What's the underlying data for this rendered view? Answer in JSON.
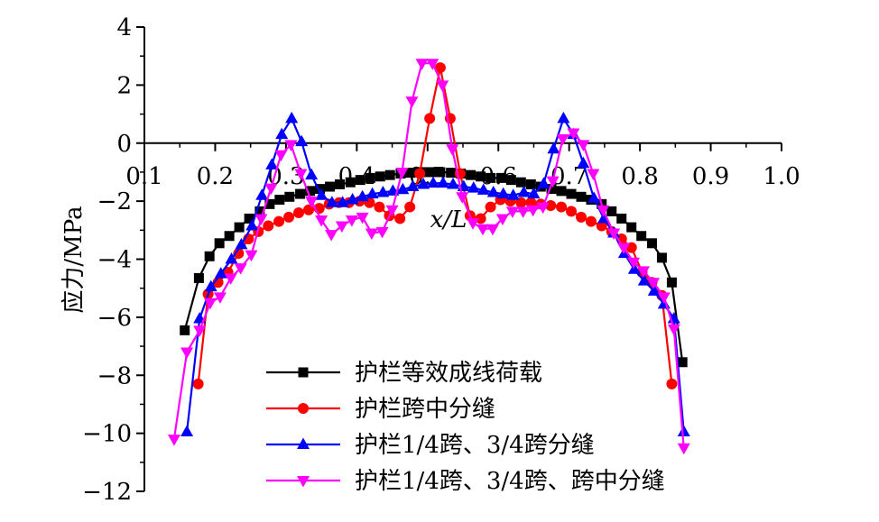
{
  "chart_data": {
    "type": "line",
    "xlabel": "x/L",
    "ylabel": "应力/MPa",
    "xlim": [
      0.1,
      1.0
    ],
    "ylim": [
      -12,
      4
    ],
    "xticks": [
      0.1,
      0.2,
      0.3,
      0.4,
      0.5,
      0.6,
      0.7,
      0.8,
      0.9,
      1.0
    ],
    "xtick_labels": [
      "0.1",
      "0.2",
      "0.3",
      "0.4",
      "0.5",
      "0.6",
      "0.7",
      "0.8",
      "0.9",
      "1.0"
    ],
    "yticks": [
      4,
      2,
      0,
      -2,
      -4,
      -6,
      -8,
      -10,
      -12
    ],
    "ytick_labels": [
      "4",
      "2",
      "0",
      "−2",
      "−4",
      "−6",
      "−8",
      "−10",
      "−12"
    ],
    "x_axis_at_y": 0,
    "legend_position": "bottom-center",
    "series": [
      {
        "name": "护栏等效成线荷载",
        "color": "#000000",
        "marker": "square",
        "x": [
          0.157,
          0.177,
          0.192,
          0.206,
          0.22,
          0.234,
          0.248,
          0.263,
          0.277,
          0.291,
          0.305,
          0.32,
          0.334,
          0.348,
          0.362,
          0.376,
          0.391,
          0.405,
          0.419,
          0.433,
          0.447,
          0.462,
          0.476,
          0.49,
          0.504,
          0.518,
          0.533,
          0.547,
          0.561,
          0.575,
          0.589,
          0.604,
          0.618,
          0.632,
          0.646,
          0.66,
          0.675,
          0.689,
          0.703,
          0.717,
          0.731,
          0.746,
          0.76,
          0.774,
          0.788,
          0.802,
          0.817,
          0.831,
          0.845,
          0.86
        ],
        "y": [
          -6.45,
          -4.65,
          -3.9,
          -3.45,
          -3.2,
          -2.9,
          -2.6,
          -2.35,
          -2.1,
          -1.95,
          -1.85,
          -1.75,
          -1.65,
          -1.58,
          -1.5,
          -1.42,
          -1.35,
          -1.27,
          -1.2,
          -1.15,
          -1.1,
          -1.05,
          -1.02,
          -1.0,
          -1.0,
          -1.0,
          -1.02,
          -1.05,
          -1.1,
          -1.15,
          -1.2,
          -1.2,
          -1.27,
          -1.35,
          -1.42,
          -1.5,
          -1.58,
          -1.65,
          -1.75,
          -1.85,
          -1.95,
          -2.1,
          -2.35,
          -2.6,
          -2.9,
          -3.2,
          -3.45,
          -3.95,
          -4.8,
          -7.55
        ]
      },
      {
        "name": "护栏跨中分缝",
        "color": "#ff0000",
        "marker": "circle",
        "x": [
          0.176,
          0.19,
          0.204,
          0.218,
          0.233,
          0.247,
          0.261,
          0.275,
          0.29,
          0.304,
          0.318,
          0.332,
          0.347,
          0.361,
          0.375,
          0.389,
          0.404,
          0.418,
          0.432,
          0.446,
          0.461,
          0.475,
          0.489,
          0.503,
          0.518,
          0.532,
          0.546,
          0.56,
          0.575,
          0.589,
          0.603,
          0.617,
          0.632,
          0.646,
          0.66,
          0.674,
          0.689,
          0.703,
          0.717,
          0.731,
          0.746,
          0.76,
          0.774,
          0.788,
          0.803,
          0.817,
          0.831,
          0.845
        ],
        "y": [
          -8.3,
          -5.2,
          -4.8,
          -4.45,
          -3.8,
          -3.3,
          -3.05,
          -2.85,
          -2.7,
          -2.55,
          -2.4,
          -2.3,
          -2.25,
          -2.1,
          -2.05,
          -2.05,
          -2.0,
          -2.05,
          -2.2,
          -2.5,
          -2.6,
          -2.2,
          -1.05,
          0.85,
          2.6,
          0.85,
          -1.05,
          -2.5,
          -2.6,
          -2.2,
          -1.95,
          -2.0,
          -2.05,
          -2.05,
          -2.1,
          -2.15,
          -2.2,
          -2.35,
          -2.55,
          -2.7,
          -2.85,
          -3.05,
          -3.3,
          -3.6,
          -4.45,
          -4.8,
          -5.25,
          -8.3
        ]
      },
      {
        "name": "护栏1/4跨、3/4跨分缝",
        "color": "#0000ff",
        "marker": "triangle-up",
        "x": [
          0.16,
          0.178,
          0.194,
          0.208,
          0.223,
          0.237,
          0.252,
          0.266,
          0.28,
          0.294,
          0.308,
          0.322,
          0.336,
          0.35,
          0.365,
          0.38,
          0.394,
          0.408,
          0.422,
          0.437,
          0.451,
          0.465,
          0.479,
          0.494,
          0.508,
          0.522,
          0.536,
          0.551,
          0.565,
          0.579,
          0.593,
          0.607,
          0.621,
          0.636,
          0.65,
          0.664,
          0.678,
          0.692,
          0.706,
          0.72,
          0.735,
          0.749,
          0.763,
          0.778,
          0.792,
          0.806,
          0.82,
          0.834,
          0.848,
          0.862
        ],
        "y": [
          -9.95,
          -6.05,
          -4.95,
          -4.5,
          -4.0,
          -3.5,
          -2.85,
          -1.8,
          -0.75,
          0.3,
          0.85,
          0.05,
          -1.1,
          -1.8,
          -2.05,
          -2.05,
          -1.95,
          -1.85,
          -1.75,
          -1.7,
          -1.65,
          -1.6,
          -1.5,
          -1.42,
          -1.38,
          -1.38,
          -1.42,
          -1.5,
          -1.55,
          -1.62,
          -1.7,
          -1.75,
          -1.8,
          -1.7,
          -1.75,
          -1.4,
          -0.2,
          0.85,
          0.3,
          -0.7,
          -1.9,
          -2.6,
          -3.1,
          -3.8,
          -4.35,
          -4.75,
          -5.1,
          -5.55,
          -6.05,
          -9.95
        ]
      },
      {
        "name": "护栏1/4跨、3/4跨、跨中分缝",
        "color": "#ff00ff",
        "marker": "triangle-down",
        "x": [
          0.142,
          0.16,
          0.178,
          0.193,
          0.207,
          0.222,
          0.236,
          0.251,
          0.265,
          0.279,
          0.293,
          0.307,
          0.321,
          0.336,
          0.35,
          0.364,
          0.379,
          0.393,
          0.408,
          0.421,
          0.436,
          0.45,
          0.464,
          0.478,
          0.492,
          0.507,
          0.521,
          0.535,
          0.549,
          0.564,
          0.578,
          0.592,
          0.606,
          0.62,
          0.635,
          0.649,
          0.663,
          0.677,
          0.691,
          0.706,
          0.72,
          0.734,
          0.748,
          0.763,
          0.777,
          0.791,
          0.805,
          0.819,
          0.834,
          0.848,
          0.862
        ],
        "y": [
          -10.2,
          -7.2,
          -6.45,
          -5.5,
          -5.3,
          -4.65,
          -4.3,
          -3.85,
          -2.6,
          -1.55,
          -0.4,
          -0.05,
          -1.05,
          -2.0,
          -2.65,
          -3.15,
          -2.85,
          -2.65,
          -2.55,
          -3.1,
          -3.05,
          -2.3,
          -1.0,
          1.45,
          2.75,
          2.75,
          2.0,
          -0.2,
          -1.85,
          -2.75,
          -2.95,
          -2.95,
          -2.6,
          -2.35,
          -2.35,
          -2.3,
          -2.2,
          -1.3,
          0.15,
          0.35,
          -0.05,
          -1.05,
          -2.3,
          -3.1,
          -3.6,
          -4.1,
          -4.4,
          -4.8,
          -5.3,
          -6.4,
          -10.5
        ]
      }
    ]
  }
}
